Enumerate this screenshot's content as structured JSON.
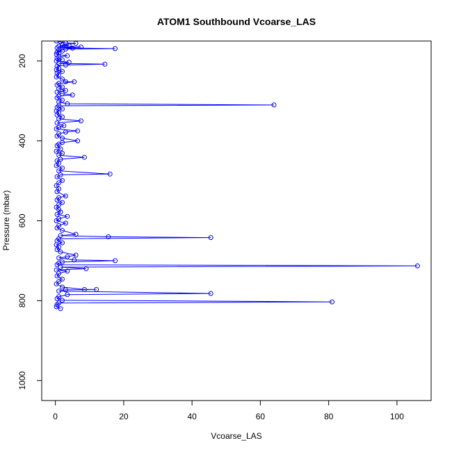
{
  "chart_data": {
    "type": "scatter",
    "title": "ATOM1 Southbound Vcoarse_LAS",
    "xlabel": "Vcoarse_LAS",
    "ylabel": "Pressure (mbar)",
    "xlim": [
      -4,
      110
    ],
    "ylim": [
      1050,
      150
    ],
    "x_ticks": [
      0,
      20,
      40,
      60,
      80,
      100
    ],
    "y_ticks": [
      200,
      400,
      600,
      800,
      1000
    ],
    "grid": false,
    "legend": "none",
    "series_color": "#0000ff",
    "points": [
      [
        0.3,
        150
      ],
      [
        1.5,
        152
      ],
      [
        3,
        155
      ],
      [
        6,
        156
      ],
      [
        2,
        159
      ],
      [
        4,
        161
      ],
      [
        1,
        163
      ],
      [
        7.5,
        165
      ],
      [
        2,
        166
      ],
      [
        0.5,
        167
      ],
      [
        17.5,
        169
      ],
      [
        3,
        170
      ],
      [
        5,
        168
      ],
      [
        1,
        172
      ],
      [
        2,
        175
      ],
      [
        0.5,
        178
      ],
      [
        1,
        180
      ],
      [
        0.3,
        183
      ],
      [
        3.5,
        187
      ],
      [
        1,
        190
      ],
      [
        0.5,
        193
      ],
      [
        2,
        197
      ],
      [
        0.3,
        200
      ],
      [
        4,
        203
      ],
      [
        1,
        206
      ],
      [
        14.5,
        208
      ],
      [
        3,
        210
      ],
      [
        0.5,
        213
      ],
      [
        1,
        218
      ],
      [
        0.3,
        222
      ],
      [
        2,
        226
      ],
      [
        0.5,
        230
      ],
      [
        1,
        235
      ],
      [
        0.3,
        240
      ],
      [
        2,
        245
      ],
      [
        3,
        252
      ],
      [
        5.5,
        252
      ],
      [
        1,
        256
      ],
      [
        0.5,
        260
      ],
      [
        2,
        265
      ],
      [
        1,
        270
      ],
      [
        3,
        274
      ],
      [
        0.5,
        278
      ],
      [
        2,
        282
      ],
      [
        5,
        285
      ],
      [
        1,
        288
      ],
      [
        0.5,
        292
      ],
      [
        2,
        298
      ],
      [
        1,
        303
      ],
      [
        3.5,
        307
      ],
      [
        64,
        310
      ],
      [
        1,
        312
      ],
      [
        0.5,
        316
      ],
      [
        2,
        320
      ],
      [
        0.3,
        325
      ],
      [
        1,
        330
      ],
      [
        0.5,
        335
      ],
      [
        2,
        340
      ],
      [
        1,
        345
      ],
      [
        7.5,
        350
      ],
      [
        0.5,
        355
      ],
      [
        2.5,
        362
      ],
      [
        1,
        366
      ],
      [
        0.3,
        370
      ],
      [
        6.5,
        375
      ],
      [
        3,
        378
      ],
      [
        1,
        382
      ],
      [
        0.5,
        388
      ],
      [
        2,
        393
      ],
      [
        6.5,
        400
      ],
      [
        2,
        404
      ],
      [
        1,
        408
      ],
      [
        0.5,
        412
      ],
      [
        1.5,
        420
      ],
      [
        0.3,
        426
      ],
      [
        2,
        431
      ],
      [
        1,
        436
      ],
      [
        8.5,
        441
      ],
      [
        1.5,
        446
      ],
      [
        0.5,
        450
      ],
      [
        1,
        456
      ],
      [
        0.3,
        462
      ],
      [
        2,
        468
      ],
      [
        1,
        475
      ],
      [
        16,
        483
      ],
      [
        1.5,
        485
      ],
      [
        0.5,
        490
      ],
      [
        2,
        499
      ],
      [
        1,
        505
      ],
      [
        0.3,
        512
      ],
      [
        1,
        520
      ],
      [
        0.5,
        527
      ],
      [
        3,
        538
      ],
      [
        1,
        542
      ],
      [
        0.5,
        548
      ],
      [
        2,
        554
      ],
      [
        1,
        560
      ],
      [
        0.3,
        566
      ],
      [
        1,
        572
      ],
      [
        1.5,
        578
      ],
      [
        0.5,
        584
      ],
      [
        3.5,
        589
      ],
      [
        1,
        595
      ],
      [
        0.3,
        600
      ],
      [
        3,
        606
      ],
      [
        1,
        612
      ],
      [
        0.5,
        618
      ],
      [
        2,
        624
      ],
      [
        6,
        634
      ],
      [
        1.5,
        637
      ],
      [
        15.5,
        640
      ],
      [
        45.5,
        642
      ],
      [
        1,
        645
      ],
      [
        0.5,
        650
      ],
      [
        2,
        655
      ],
      [
        0.3,
        660
      ],
      [
        1,
        666
      ],
      [
        0.5,
        672
      ],
      [
        1.5,
        678
      ],
      [
        6,
        686
      ],
      [
        3.5,
        690
      ],
      [
        1,
        693
      ],
      [
        5.5,
        698
      ],
      [
        17.5,
        700
      ],
      [
        2,
        703
      ],
      [
        1,
        706
      ],
      [
        0.5,
        710
      ],
      [
        106,
        713
      ],
      [
        1.5,
        716
      ],
      [
        9,
        720
      ],
      [
        0.3,
        723
      ],
      [
        3.5,
        726
      ],
      [
        1,
        732
      ],
      [
        0.5,
        738
      ],
      [
        2,
        746
      ],
      [
        1,
        752
      ],
      [
        0.3,
        758
      ],
      [
        2,
        766
      ],
      [
        8.5,
        772
      ],
      [
        12,
        772
      ],
      [
        3,
        773
      ],
      [
        1,
        776
      ],
      [
        45.5,
        782
      ],
      [
        3.5,
        785
      ],
      [
        1,
        790
      ],
      [
        0.5,
        795
      ],
      [
        2,
        799
      ],
      [
        81,
        803
      ],
      [
        1,
        806
      ],
      [
        0.5,
        810
      ],
      [
        0.3,
        815
      ],
      [
        1.5,
        820
      ]
    ]
  }
}
